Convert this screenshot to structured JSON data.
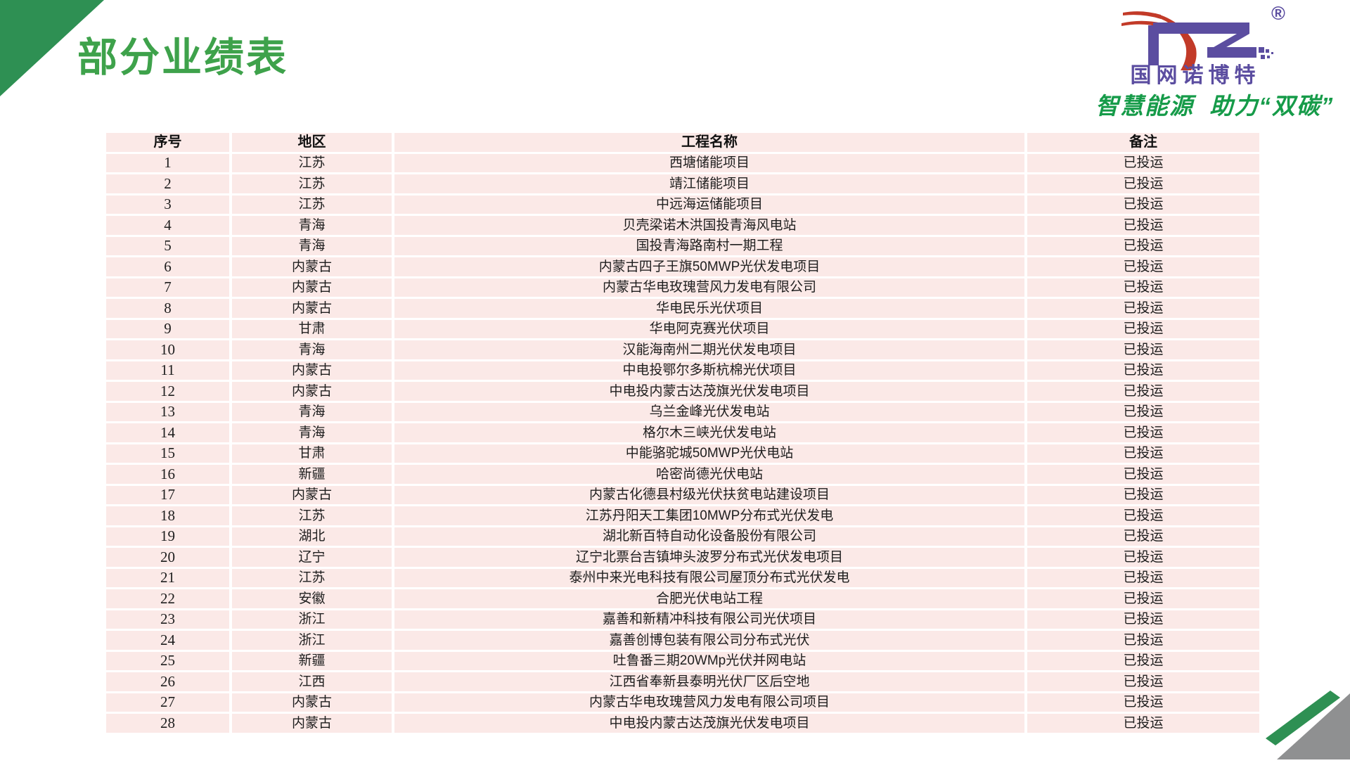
{
  "slide": {
    "title": "部分业绩表"
  },
  "logo": {
    "brand": "国网诺博特",
    "slogan": "智慧能源  助力“双碳”",
    "reg": "®"
  },
  "table": {
    "columns": [
      "序号",
      "地区",
      "工程名称",
      "备注"
    ],
    "rows": [
      [
        "1",
        "江苏",
        "西塘储能项目",
        "已投运"
      ],
      [
        "2",
        "江苏",
        "靖江储能项目",
        "已投运"
      ],
      [
        "3",
        "江苏",
        "中远海运储能项目",
        "已投运"
      ],
      [
        "4",
        "青海",
        "贝壳梁诺木洪国投青海风电站",
        "已投运"
      ],
      [
        "5",
        "青海",
        "国投青海路南村一期工程",
        "已投运"
      ],
      [
        "6",
        "内蒙古",
        "内蒙古四子王旗50MWP光伏发电项目",
        "已投运"
      ],
      [
        "7",
        "内蒙古",
        "内蒙古华电玫瑰营风力发电有限公司",
        "已投运"
      ],
      [
        "8",
        "内蒙古",
        "华电民乐光伏项目",
        "已投运"
      ],
      [
        "9",
        "甘肃",
        "华电阿克赛光伏项目",
        "已投运"
      ],
      [
        "10",
        "青海",
        "汉能海南州二期光伏发电项目",
        "已投运"
      ],
      [
        "11",
        "内蒙古",
        "中电投鄂尔多斯杭棉光伏项目",
        "已投运"
      ],
      [
        "12",
        "内蒙古",
        "中电投内蒙古达茂旗光伏发电项目",
        "已投运"
      ],
      [
        "13",
        "青海",
        "乌兰金峰光伏发电站",
        "已投运"
      ],
      [
        "14",
        "青海",
        "格尔木三峡光伏发电站",
        "已投运"
      ],
      [
        "15",
        "甘肃",
        "中能骆驼城50MWP光伏电站",
        "已投运"
      ],
      [
        "16",
        "新疆",
        "哈密尚德光伏电站",
        "已投运"
      ],
      [
        "17",
        "内蒙古",
        "内蒙古化德县村级光伏扶贫电站建设项目",
        "已投运"
      ],
      [
        "18",
        "江苏",
        "江苏丹阳天工集团10MWP分布式光伏发电",
        "已投运"
      ],
      [
        "19",
        "湖北",
        "湖北新百特自动化设备股份有限公司",
        "已投运"
      ],
      [
        "20",
        "辽宁",
        "辽宁北票台吉镇坤头波罗分布式光伏发电项目",
        "已投运"
      ],
      [
        "21",
        "江苏",
        "泰州中来光电科技有限公司屋顶分布式光伏发电",
        "已投运"
      ],
      [
        "22",
        "安徽",
        "合肥光伏电站工程",
        "已投运"
      ],
      [
        "23",
        "浙江",
        "嘉善和新精冲科技有限公司光伏项目",
        "已投运"
      ],
      [
        "24",
        "浙江",
        "嘉善创博包装有限公司分布式光伏",
        "已投运"
      ],
      [
        "25",
        "新疆",
        "吐鲁番三期20WMp光伏并网电站",
        "已投运"
      ],
      [
        "26",
        "江西",
        "江西省奉新县泰明光伏厂区后空地",
        "已投运"
      ],
      [
        "27",
        "内蒙古",
        "内蒙古华电玫瑰营风力发电有限公司项目",
        "已投运"
      ],
      [
        "28",
        "内蒙古",
        "中电投内蒙古达茂旗光伏发电项目",
        "已投运"
      ]
    ]
  },
  "colors": {
    "title_green": "#3ea24b",
    "corner_green": "#2e9053",
    "corner_gray": "#8f9091",
    "row_pink": "#fbe9e7",
    "logo_purple": "#5b4da0",
    "logo_red": "#c23a28",
    "slogan_green": "#169b49"
  }
}
